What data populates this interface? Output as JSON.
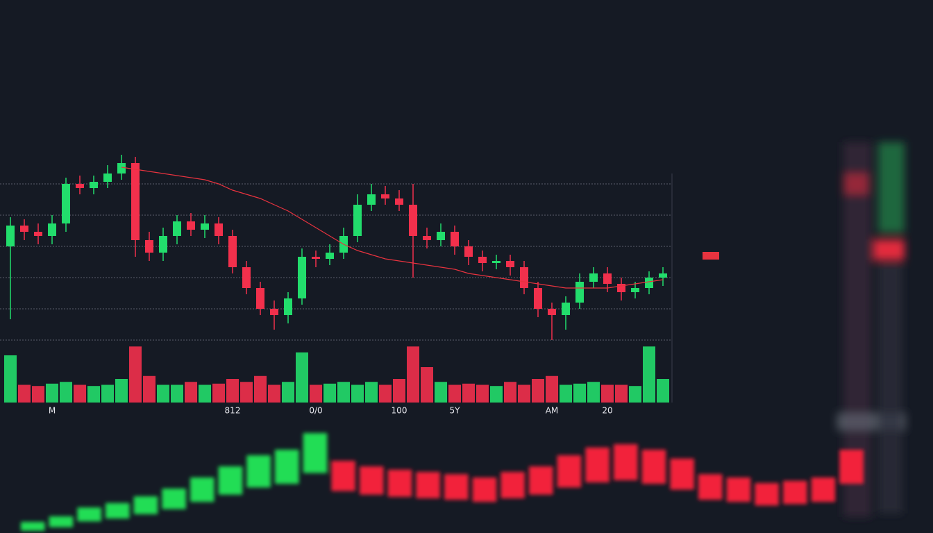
{
  "chart_data": [
    {
      "type": "candlestick",
      "categories": [
        null,
        null,
        null,
        "M",
        null,
        null,
        null,
        null,
        null,
        null,
        null,
        null,
        null,
        null,
        null,
        null,
        "812",
        null,
        null,
        null,
        null,
        null,
        "0/0",
        null,
        null,
        null,
        null,
        null,
        "100",
        null,
        null,
        null,
        "5Y",
        null,
        null,
        null,
        null,
        null,
        null,
        "AM",
        null,
        null,
        null,
        "20",
        null,
        null,
        null,
        null
      ],
      "open": [
        55,
        65,
        62,
        60,
        66,
        85,
        83,
        86,
        90,
        95,
        58,
        52,
        60,
        67,
        63,
        66,
        60,
        45,
        35,
        25,
        22,
        30,
        50,
        49,
        52,
        60,
        75,
        80,
        78,
        75,
        60,
        58,
        62,
        55,
        50,
        47,
        48,
        45,
        35,
        25,
        22,
        28,
        38,
        42,
        37,
        33,
        35,
        40
      ],
      "high": [
        69,
        68,
        66,
        70,
        88,
        89,
        89,
        94,
        99,
        98,
        62,
        64,
        70,
        71,
        70,
        69,
        63,
        48,
        38,
        29,
        33,
        54,
        53,
        56,
        64,
        80,
        85,
        84,
        82,
        85,
        64,
        66,
        65,
        58,
        53,
        51,
        51,
        48,
        38,
        28,
        31,
        42,
        45,
        45,
        40,
        38,
        43,
        45
      ],
      "low": [
        20,
        58,
        56,
        56,
        62,
        80,
        80,
        83,
        87,
        50,
        48,
        48,
        56,
        60,
        59,
        56,
        42,
        32,
        22,
        15,
        18,
        27,
        45,
        46,
        49,
        57,
        72,
        75,
        72,
        40,
        54,
        55,
        51,
        46,
        43,
        44,
        41,
        32,
        21,
        10,
        15,
        25,
        35,
        33,
        29,
        30,
        32,
        36
      ],
      "close": [
        65,
        62,
        60,
        66,
        85,
        83,
        86,
        90,
        95,
        58,
        52,
        60,
        67,
        63,
        66,
        60,
        45,
        35,
        25,
        22,
        30,
        50,
        49,
        52,
        60,
        75,
        80,
        78,
        75,
        60,
        58,
        62,
        55,
        50,
        47,
        48,
        45,
        35,
        25,
        22,
        28,
        38,
        42,
        37,
        33,
        35,
        40,
        42
      ],
      "volume": [
        80,
        30,
        28,
        32,
        35,
        30,
        28,
        30,
        40,
        95,
        45,
        30,
        30,
        35,
        30,
        32,
        40,
        35,
        45,
        30,
        35,
        85,
        30,
        32,
        35,
        30,
        35,
        30,
        40,
        95,
        60,
        35,
        30,
        32,
        30,
        28,
        35,
        30,
        40,
        45,
        30,
        32,
        35,
        30,
        30,
        28,
        95,
        40
      ],
      "moving_average": [
        null,
        null,
        null,
        null,
        null,
        null,
        null,
        null,
        93,
        92,
        91,
        90,
        89,
        88,
        87,
        85,
        82,
        80,
        78,
        75,
        72,
        68,
        64,
        60,
        56,
        53,
        51,
        49,
        48,
        47,
        46,
        45,
        44,
        42,
        41,
        40,
        39,
        38,
        37,
        36,
        35,
        35,
        35,
        35,
        36,
        37,
        38,
        39
      ],
      "up_color": "#22dd6c",
      "down_color": "#f2304c",
      "ma_color": "#e8333f",
      "ylim": [
        0,
        100
      ],
      "yticks": [
        10,
        25,
        40,
        55,
        70,
        85
      ],
      "volume_ylim": [
        0,
        100
      ],
      "grid": true
    },
    {
      "type": "bar",
      "series": [
        {
          "color": "#22dd55",
          "values": [
            5,
            10,
            18,
            22,
            28,
            35,
            45,
            55,
            65,
            70,
            85,
            null,
            null,
            null,
            null,
            null,
            null,
            null,
            null,
            null,
            null,
            null,
            null,
            null,
            null,
            null,
            null,
            null,
            null,
            null
          ]
        },
        {
          "color": "#f2233a",
          "values": [
            null,
            null,
            null,
            null,
            null,
            null,
            null,
            null,
            null,
            null,
            null,
            60,
            55,
            52,
            50,
            48,
            45,
            50,
            55,
            65,
            72,
            75,
            70,
            62,
            48,
            45,
            40,
            42,
            45,
            70
          ]
        }
      ],
      "ylim": [
        0,
        100
      ]
    }
  ]
}
